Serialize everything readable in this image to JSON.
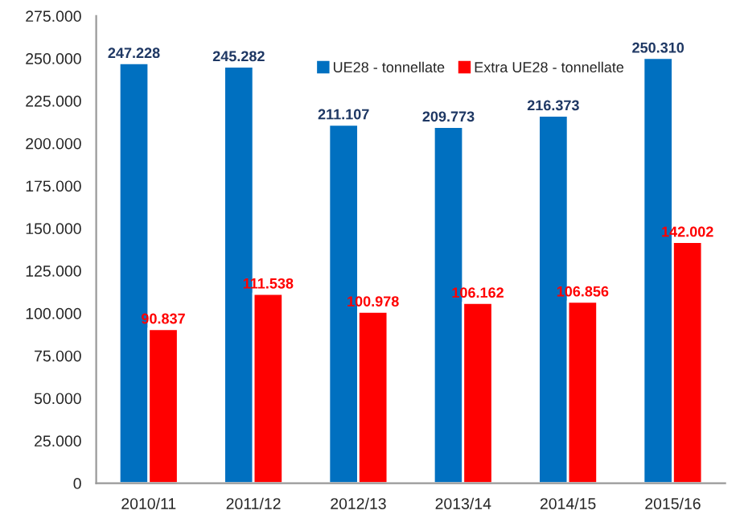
{
  "chart_data": {
    "type": "bar",
    "categories": [
      "2010/11",
      "2011/12",
      "2012/13",
      "2013/14",
      "2014/15",
      "2015/16"
    ],
    "series": [
      {
        "name": "UE28 - tonnellate",
        "color": "#0070c0",
        "values": [
          247228,
          245282,
          211107,
          209773,
          216373,
          250310
        ],
        "value_labels": [
          "247.228",
          "245.282",
          "211.107",
          "209.773",
          "216.373",
          "250.310"
        ]
      },
      {
        "name": "Extra UE28 - tonnellate",
        "color": "#ff0000",
        "values": [
          90837,
          111538,
          100978,
          106162,
          106856,
          142002
        ],
        "value_labels": [
          "90.837",
          "111.538",
          "100.978",
          "106.162",
          "106.856",
          "142.002"
        ]
      }
    ],
    "ylim": [
      0,
      275000
    ],
    "yticks": [
      {
        "value": 0,
        "label": "0"
      },
      {
        "value": 25000,
        "label": "25.000"
      },
      {
        "value": 50000,
        "label": "50.000"
      },
      {
        "value": 75000,
        "label": "75.000"
      },
      {
        "value": 100000,
        "label": "100.000"
      },
      {
        "value": 125000,
        "label": "125.000"
      },
      {
        "value": 150000,
        "label": "150.000"
      },
      {
        "value": 175000,
        "label": "175.000"
      },
      {
        "value": 200000,
        "label": "200.000"
      },
      {
        "value": 225000,
        "label": "225.000"
      },
      {
        "value": 250000,
        "label": "250.000"
      },
      {
        "value": 275000,
        "label": "275.000"
      }
    ],
    "legend": "top right",
    "grid": false
  }
}
